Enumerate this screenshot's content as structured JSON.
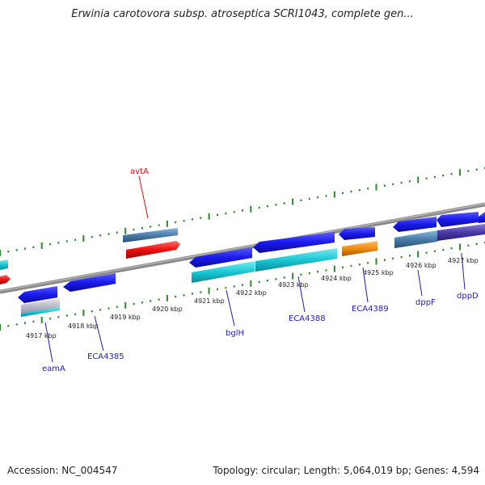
{
  "title": "Erwinia carotovora subsp. atroseptica SCRI1043, complete gen...",
  "footer": {
    "accession": "Accession: NC_004547",
    "stats": "Topology: circular; Length: 5,064,019 bp; Genes: 4,594"
  },
  "scale_labels": [
    "4917 kbp",
    "4918 kbp",
    "4919 kbp",
    "4920 kbp",
    "4921 kbp",
    "4922 kbp",
    "4923 kbp",
    "4924 kbp",
    "4925 kbp",
    "4926 kbp",
    "4927 kbp"
  ],
  "gene_labels": {
    "avtA": "avtA",
    "eamA": "eamA",
    "ECA4385": "ECA4385",
    "bglH": "bglH",
    "ECA4388": "ECA4388",
    "ECA4389": "ECA4389",
    "dppF": "dppF",
    "dppD": "dppD"
  },
  "colors": {
    "cds": "#1a1aee",
    "cds_cyan": "#18c8d4",
    "rna": "#ee1010",
    "orange": "#f08c10",
    "steel": "#4a7eaa",
    "backbone": "#8a8a8a",
    "ticks": "#2a8a2a",
    "label": "#1f1fa8",
    "label_red": "#d01010"
  }
}
